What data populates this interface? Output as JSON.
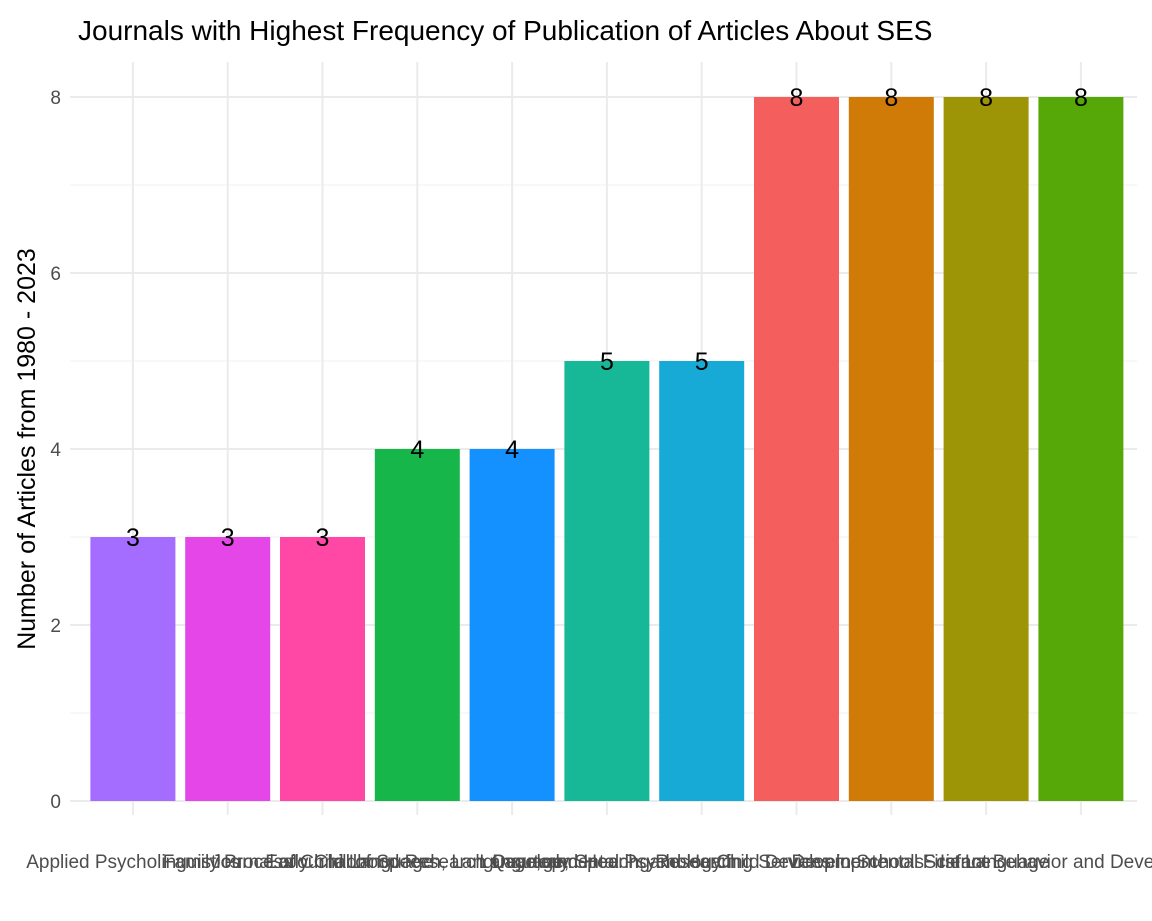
{
  "chart_data": {
    "type": "bar",
    "title": "Journals with Highest Frequency of Publication of Articles About SES",
    "xlabel": "",
    "ylabel": "Number of Articles from 1980 - 2023",
    "ylim": [
      0,
      8.2
    ],
    "yticks": [
      0,
      2,
      4,
      6,
      8
    ],
    "grid": true,
    "legend": "none",
    "categories": [
      "Applied Psycholinguistics",
      "Family Process",
      "Journal of Child Language",
      "Early Childhood Research Quarterly",
      "Journal of Speech, Language, and Hearing Research",
      "Developmental Psychology",
      "Language, Speech, and Hearing Services in Schools",
      "Child Development",
      "Developmental Science",
      "First Language",
      "Infant Behavior and Development"
    ],
    "values": [
      3,
      3,
      3,
      4,
      4,
      5,
      5,
      8,
      8,
      8,
      8
    ],
    "colors": [
      "#A46CFF",
      "#E546E8",
      "#FF47A5",
      "#17B64A",
      "#1490FF",
      "#17B898",
      "#18AAD6",
      "#F45F5D",
      "#D07A08",
      "#9D9406",
      "#56A808"
    ],
    "data_labels": [
      "3",
      "3",
      "3",
      "4",
      "4",
      "5",
      "5",
      "8",
      "8",
      "8",
      "8"
    ]
  }
}
